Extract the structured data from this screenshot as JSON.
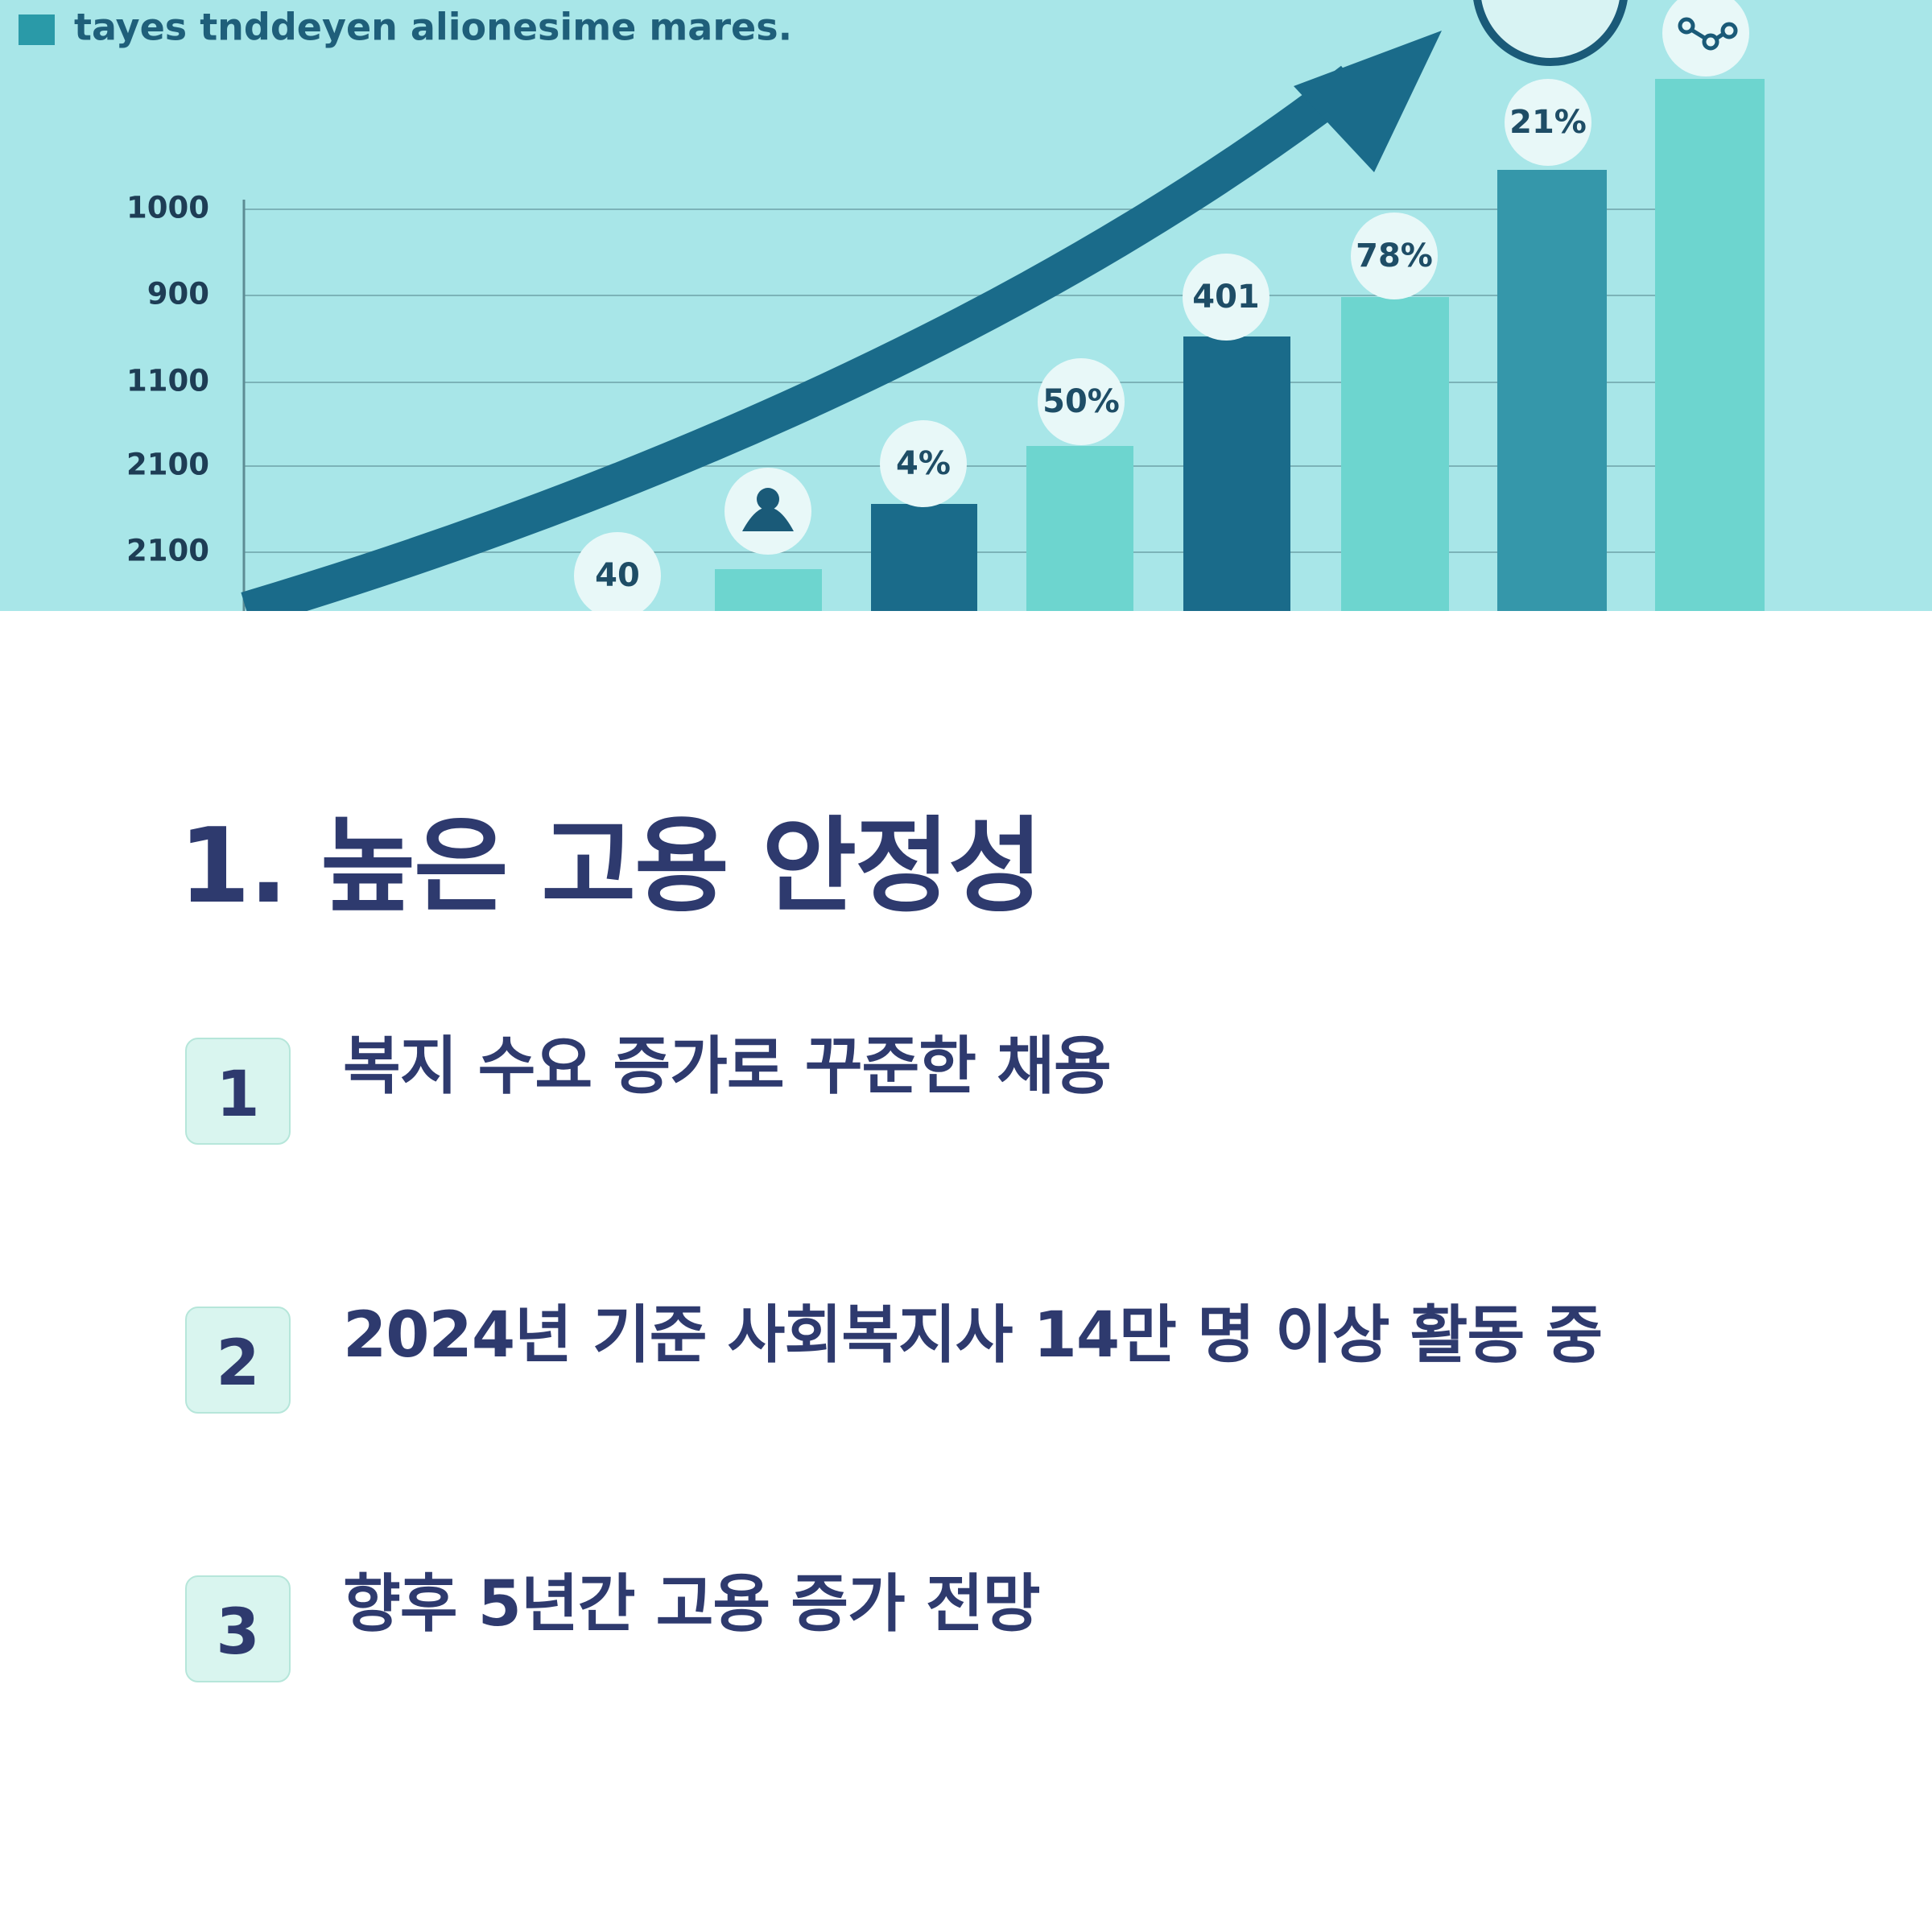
{
  "illustration": {
    "legend": "tayes tnddeyen alionesime mares.",
    "y_labels": [
      "1000",
      "900",
      "1100",
      "2100",
      "2100"
    ],
    "bar_labels": [
      "40",
      "4%",
      "50%",
      "401",
      "78%",
      "21%"
    ]
  },
  "heading": "1. 높은 고용 안정성",
  "items": [
    {
      "number": "1",
      "text": "복지 수요 증가로 꾸준한 채용"
    },
    {
      "number": "2",
      "text": "2024년 기준 사회복지사 14만 명 이상 활동 중"
    },
    {
      "number": "3",
      "text": "향후 5년간 고용 증가 전망"
    }
  ]
}
